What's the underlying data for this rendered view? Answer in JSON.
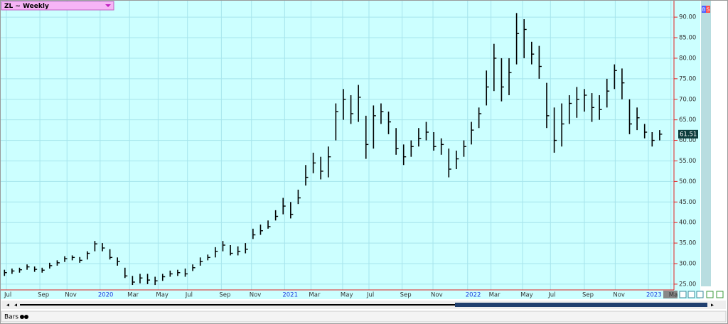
{
  "chart_data": {
    "type": "ohlc",
    "title": "ZL ~ Weekly",
    "high": [
      28.5,
      28.8,
      29.0,
      29.8,
      29.3,
      29.0,
      30.2,
      30.8,
      31.8,
      32.0,
      31.6,
      33.0,
      35.5,
      35.0,
      33.5,
      31.5,
      29.0,
      27.0,
      27.5,
      27.5,
      26.8,
      27.5,
      28.3,
      28.5,
      28.8,
      29.8,
      31.5,
      32.2,
      34.0,
      35.5,
      34.5,
      34.2,
      35.0,
      38.5,
      39.5,
      40.5,
      43.0,
      46.0,
      45.0,
      48.0,
      54.0,
      57.0,
      56.0,
      58.5,
      69.0,
      72.5,
      71.0,
      73.5,
      66.0,
      68.5,
      69.0,
      67.0,
      63.0,
      59.0,
      60.0,
      63.0,
      64.5,
      62.0,
      60.5,
      58.0,
      57.5,
      60.0,
      64.5,
      68.0,
      77.0,
      83.5,
      80.0,
      80.0,
      91.0,
      89.5,
      84.0,
      83.0,
      74.0,
      68.0,
      69.0,
      71.0,
      73.0,
      72.5,
      71.5,
      71.0,
      75.0,
      78.5,
      77.5,
      70.0,
      68.0,
      64.0,
      62.0,
      62.5
    ],
    "low": [
      27.0,
      27.5,
      27.8,
      28.5,
      28.0,
      27.8,
      28.8,
      29.5,
      30.4,
      30.8,
      30.2,
      31.0,
      33.0,
      33.0,
      31.0,
      29.5,
      26.5,
      24.8,
      25.2,
      25.0,
      24.8,
      25.8,
      26.8,
      27.0,
      26.8,
      28.2,
      29.5,
      30.8,
      31.5,
      33.0,
      32.0,
      32.0,
      32.5,
      36.0,
      37.0,
      38.5,
      40.5,
      42.0,
      41.0,
      44.5,
      49.0,
      52.0,
      50.5,
      51.0,
      60.0,
      65.0,
      64.0,
      64.5,
      55.5,
      58.0,
      64.0,
      61.5,
      56.5,
      54.0,
      56.0,
      58.5,
      60.0,
      57.5,
      56.5,
      51.0,
      53.0,
      56.0,
      59.0,
      63.0,
      68.5,
      72.0,
      69.5,
      71.0,
      78.5,
      80.0,
      78.5,
      75.0,
      63.0,
      57.0,
      58.5,
      64.0,
      65.5,
      67.0,
      64.5,
      65.0,
      68.0,
      72.5,
      70.0,
      61.5,
      62.5,
      60.5,
      58.5,
      60.0
    ],
    "close": [
      27.8,
      28.2,
      28.5,
      29.2,
      28.6,
      28.4,
      29.5,
      30.2,
      31.2,
      31.5,
      30.8,
      32.5,
      34.8,
      33.8,
      31.5,
      30.5,
      27.0,
      25.5,
      26.5,
      26.0,
      25.8,
      26.8,
      27.5,
      27.8,
      27.5,
      29.0,
      30.5,
      31.5,
      33.0,
      34.5,
      32.5,
      33.0,
      33.5,
      37.0,
      38.0,
      39.0,
      41.5,
      44.0,
      42.0,
      46.0,
      51.0,
      54.5,
      52.5,
      56.0,
      67.0,
      70.0,
      66.5,
      70.5,
      59.0,
      66.0,
      67.0,
      64.5,
      58.0,
      56.0,
      58.5,
      60.5,
      62.0,
      58.5,
      59.0,
      53.0,
      55.5,
      58.5,
      62.5,
      66.5,
      73.0,
      80.0,
      73.0,
      76.5,
      86.0,
      87.0,
      81.0,
      78.0,
      66.0,
      60.0,
      64.0,
      69.0,
      70.0,
      71.0,
      68.0,
      67.5,
      72.0,
      77.0,
      74.0,
      64.0,
      65.5,
      62.0,
      60.0,
      61.51
    ],
    "color": "#000000",
    "xlim": [
      -0.5,
      88.9
    ],
    "xticks": [
      {
        "value": 0.25,
        "label": "Jul"
      },
      {
        "value": 4.7,
        "label": "Sep"
      },
      {
        "value": 8.3,
        "label": "Nov"
      },
      {
        "value": 12.7,
        "label": "2020"
      },
      {
        "value": 16.6,
        "label": "Mar"
      },
      {
        "value": 20.4,
        "label": "May"
      },
      {
        "value": 24.3,
        "label": "Jul"
      },
      {
        "value": 28.8,
        "label": "Sep"
      },
      {
        "value": 32.8,
        "label": "Nov"
      },
      {
        "value": 37.2,
        "label": "2021"
      },
      {
        "value": 40.7,
        "label": "Mar"
      },
      {
        "value": 44.9,
        "label": "May"
      },
      {
        "value": 48.4,
        "label": "Jul"
      },
      {
        "value": 52.8,
        "label": "Sep"
      },
      {
        "value": 56.9,
        "label": "Nov"
      },
      {
        "value": 61.5,
        "label": "2022"
      },
      {
        "value": 64.6,
        "label": "Mar"
      },
      {
        "value": 68.8,
        "label": "May"
      },
      {
        "value": 72.5,
        "label": "Jul"
      },
      {
        "value": 77.0,
        "label": "Sep"
      },
      {
        "value": 81.1,
        "label": "Nov"
      },
      {
        "value": 85.5,
        "label": "2023"
      },
      {
        "value": 88.5,
        "label": "Ma"
      }
    ],
    "ylim": [
      23.6,
      94
    ],
    "yticks": [
      {
        "value": 25,
        "label": "25.00"
      },
      {
        "value": 30,
        "label": "30.00"
      },
      {
        "value": 35,
        "label": "35.00"
      },
      {
        "value": 40,
        "label": "40.00"
      },
      {
        "value": 45,
        "label": "45.00"
      },
      {
        "value": 50,
        "label": "50.00"
      },
      {
        "value": 55,
        "label": "55.00"
      },
      {
        "value": 60,
        "label": "60.00"
      },
      {
        "value": 65,
        "label": "65.00"
      },
      {
        "value": 70,
        "label": "70.00"
      },
      {
        "value": 75,
        "label": "75.00"
      },
      {
        "value": 80,
        "label": "80.00"
      },
      {
        "value": 85,
        "label": "85.00"
      },
      {
        "value": 90,
        "label": "90.00"
      }
    ],
    "grid": true
  },
  "ui": {
    "study_label": "Bars",
    "buttons": [
      "B",
      "S"
    ]
  }
}
